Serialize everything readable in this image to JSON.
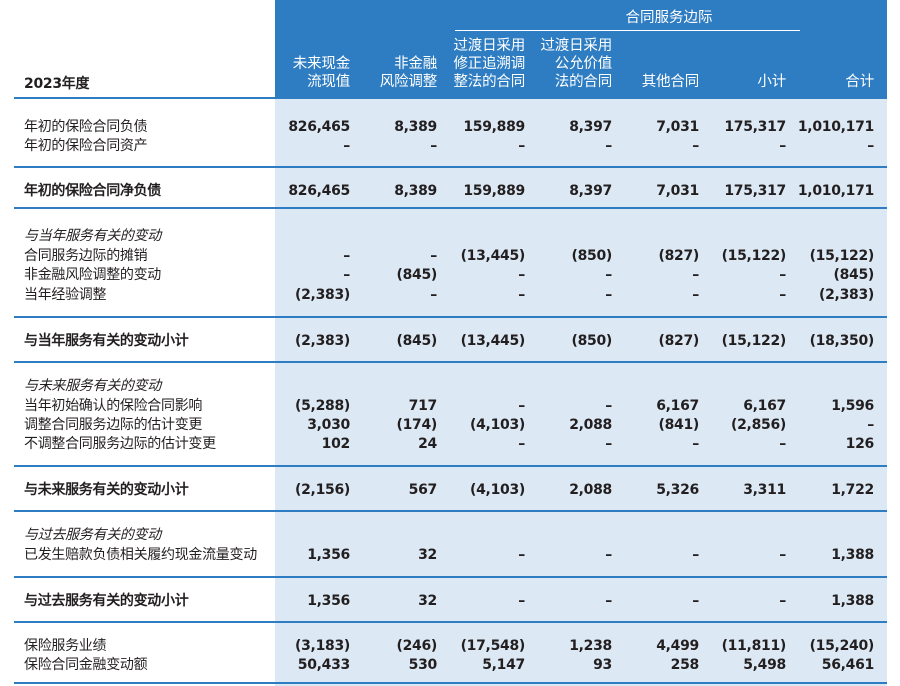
{
  "header": {
    "year_label": "2023年度",
    "group_title": "合同服务边际",
    "columns": [
      {
        "key": "pv",
        "lines": [
          "未来现金",
          "流现值"
        ]
      },
      {
        "key": "ra",
        "lines": [
          "非金融",
          "风险调整"
        ]
      },
      {
        "key": "fra",
        "lines": [
          "过渡日采用",
          "修正追溯调",
          "整法的合同"
        ]
      },
      {
        "key": "fva",
        "lines": [
          "过渡日采用",
          "公允价值",
          "法的合同"
        ]
      },
      {
        "key": "other",
        "lines": [
          "其他合同"
        ]
      },
      {
        "key": "subtotal",
        "lines": [
          "小计"
        ]
      },
      {
        "key": "total",
        "lines": [
          "合计"
        ]
      }
    ]
  },
  "rows": [
    {
      "label": "年初的保险合同负债",
      "style": "normal",
      "values": [
        "826,465",
        "8,389",
        "159,889",
        "8,397",
        "7,031",
        "175,317",
        "1,010,171"
      ]
    },
    {
      "label": "年初的保险合同资产",
      "style": "normal",
      "values": [
        "–",
        "–",
        "–",
        "–",
        "–",
        "–",
        "–"
      ]
    },
    {
      "label": "年初的保险合同净负债",
      "style": "bold",
      "values": [
        "826,465",
        "8,389",
        "159,889",
        "8,397",
        "7,031",
        "175,317",
        "1,010,171"
      ]
    },
    {
      "label": "与当年服务有关的变动",
      "style": "italic",
      "values": []
    },
    {
      "label": "合同服务边际的摊销",
      "style": "normal",
      "values": [
        "–",
        "–",
        "(13,445)",
        "(850)",
        "(827)",
        "(15,122)",
        "(15,122)"
      ]
    },
    {
      "label": "非金融风险调整的变动",
      "style": "normal",
      "values": [
        "–",
        "(845)",
        "–",
        "–",
        "–",
        "–",
        "(845)"
      ]
    },
    {
      "label": "当年经验调整",
      "style": "normal",
      "values": [
        "(2,383)",
        "–",
        "–",
        "–",
        "–",
        "–",
        "(2,383)"
      ]
    },
    {
      "label": "与当年服务有关的变动小计",
      "style": "bold",
      "values": [
        "(2,383)",
        "(845)",
        "(13,445)",
        "(850)",
        "(827)",
        "(15,122)",
        "(18,350)"
      ]
    },
    {
      "label": "与未来服务有关的变动",
      "style": "italic",
      "values": []
    },
    {
      "label": "当年初始确认的保险合同影响",
      "style": "normal",
      "values": [
        "(5,288)",
        "717",
        "–",
        "–",
        "6,167",
        "6,167",
        "1,596"
      ]
    },
    {
      "label": "调整合同服务边际的估计变更",
      "style": "normal",
      "values": [
        "3,030",
        "(174)",
        "(4,103)",
        "2,088",
        "(841)",
        "(2,856)",
        "–"
      ]
    },
    {
      "label": "不调整合同服务边际的估计变更",
      "style": "normal",
      "values": [
        "102",
        "24",
        "–",
        "–",
        "–",
        "–",
        "126"
      ]
    },
    {
      "label": "与未来服务有关的变动小计",
      "style": "bold",
      "values": [
        "(2,156)",
        "567",
        "(4,103)",
        "2,088",
        "5,326",
        "3,311",
        "1,722"
      ]
    },
    {
      "label": "与过去服务有关的变动",
      "style": "italic",
      "values": []
    },
    {
      "label": "已发生赔款负债相关履约现金流量变动",
      "style": "normal",
      "values": [
        "1,356",
        "32",
        "–",
        "–",
        "–",
        "–",
        "1,388"
      ]
    },
    {
      "label": "与过去服务有关的变动小计",
      "style": "bold",
      "values": [
        "1,356",
        "32",
        "–",
        "–",
        "–",
        "–",
        "1,388"
      ]
    },
    {
      "label": "保险服务业绩",
      "style": "normal",
      "values": [
        "(3,183)",
        "(246)",
        "(17,548)",
        "1,238",
        "4,499",
        "(11,811)",
        "(15,240)"
      ]
    },
    {
      "label": "保险合同金融变动额",
      "style": "normal",
      "values": [
        "50,433",
        "530",
        "5,147",
        "93",
        "258",
        "5,498",
        "56,461"
      ]
    }
  ],
  "colors": {
    "header_blue": "#2e7cc1",
    "shade_blue": "#dce9f5",
    "text": "#231f20"
  }
}
